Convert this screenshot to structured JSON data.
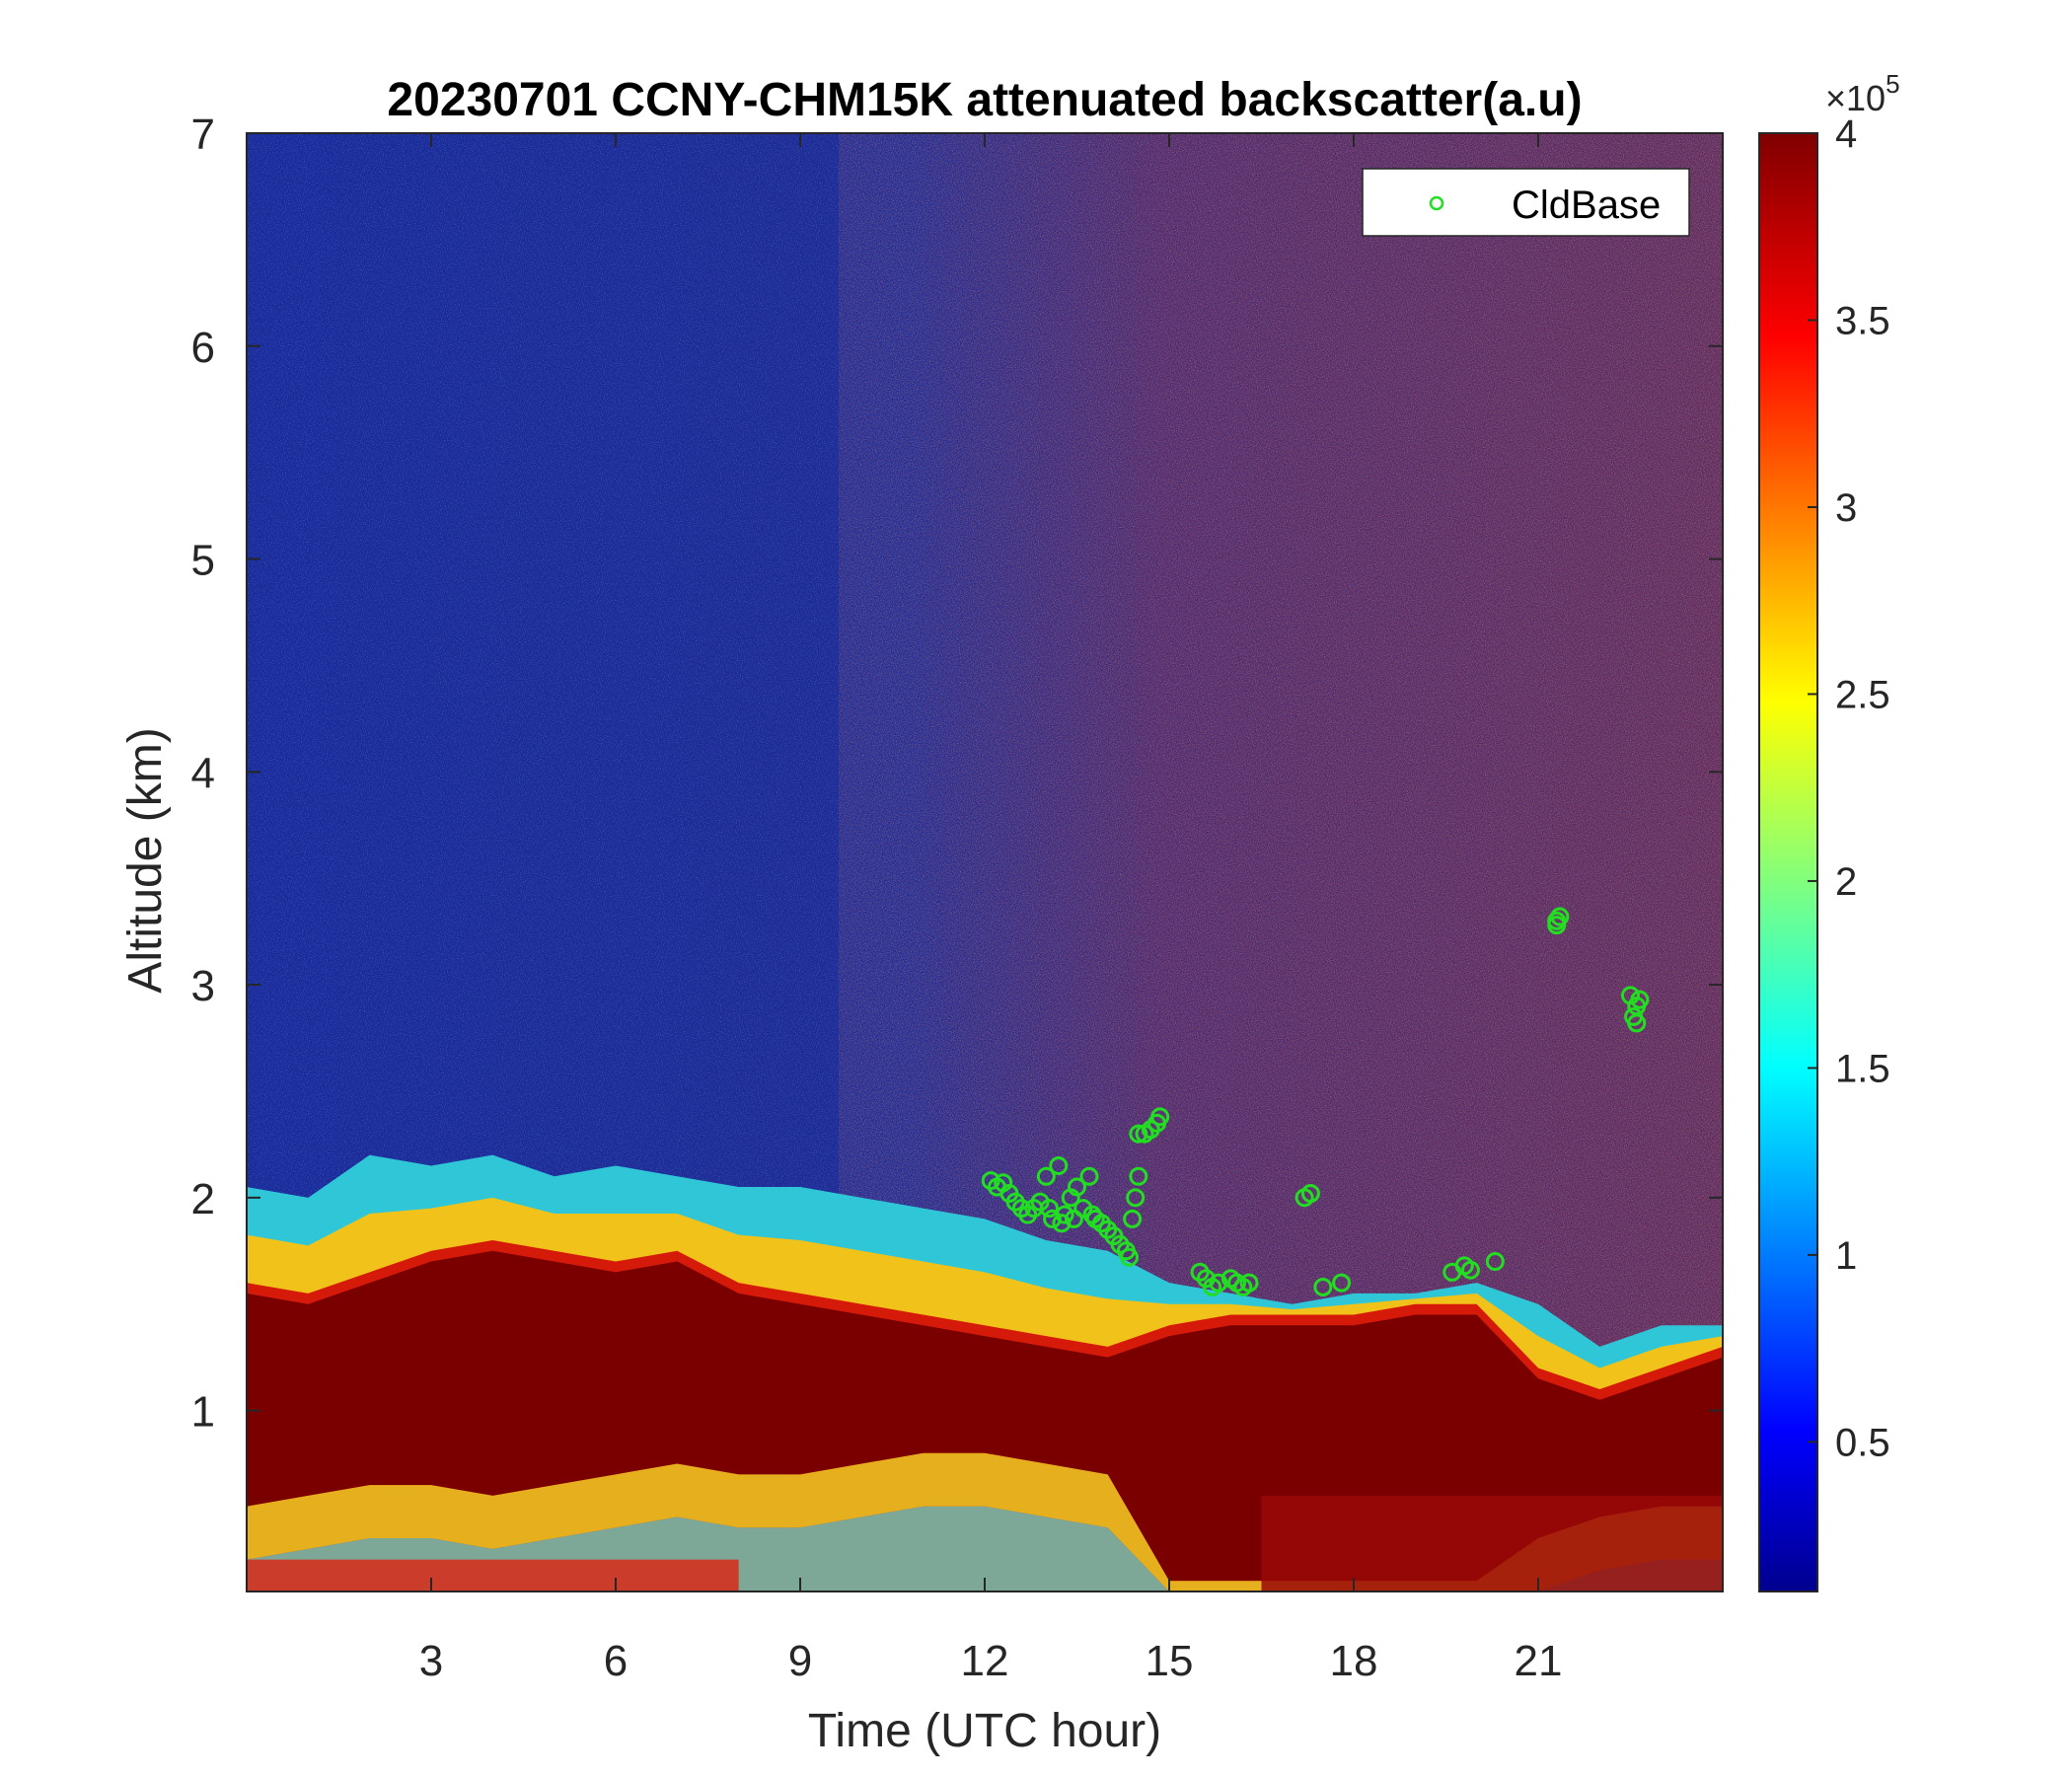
{
  "chart_data": {
    "type": "heatmap",
    "title": "20230701 CCNY-CHM15K attenuated backscatter(a.u)",
    "xlabel": "Time (UTC hour)",
    "ylabel": "Altitude (km)",
    "xlim": [
      0,
      24
    ],
    "ylim": [
      0.15,
      7
    ],
    "xticks": [
      3,
      6,
      9,
      12,
      15,
      18,
      21
    ],
    "yticks": [
      1,
      2,
      3,
      4,
      5,
      6,
      7
    ],
    "colormap": "jet",
    "colorbar": {
      "range": [
        0.1,
        4
      ],
      "ticks": [
        "0.5",
        "1",
        "1.5",
        "2",
        "2.5",
        "3",
        "3.5",
        "4"
      ],
      "tick_values": [
        0.5,
        1,
        1.5,
        2,
        2.5,
        3,
        3.5,
        4
      ],
      "multiplier": "×10",
      "exponent": "5"
    },
    "legend": {
      "placement": "top-right",
      "entries": [
        {
          "name": "CldBase",
          "marker": "circle",
          "color": "#22dd22"
        }
      ]
    },
    "layers": {
      "aerosol_top_km": [
        [
          0,
          2.05
        ],
        [
          1,
          2.0
        ],
        [
          2,
          2.2
        ],
        [
          3,
          2.15
        ],
        [
          4,
          2.2
        ],
        [
          5,
          2.1
        ],
        [
          6,
          2.15
        ],
        [
          7,
          2.1
        ],
        [
          8,
          2.05
        ],
        [
          9,
          2.05
        ],
        [
          10,
          2.0
        ],
        [
          11,
          1.95
        ],
        [
          12,
          1.9
        ],
        [
          13,
          1.8
        ],
        [
          14,
          1.75
        ],
        [
          15,
          1.6
        ],
        [
          16,
          1.55
        ],
        [
          17,
          1.5
        ],
        [
          18,
          1.55
        ],
        [
          19,
          1.55
        ],
        [
          20,
          1.6
        ],
        [
          21,
          1.5
        ],
        [
          22,
          1.3
        ],
        [
          23,
          1.4
        ],
        [
          24,
          1.4
        ]
      ],
      "thick_layer_top_km": [
        [
          0,
          1.6
        ],
        [
          1,
          1.55
        ],
        [
          2,
          1.65
        ],
        [
          3,
          1.75
        ],
        [
          4,
          1.8
        ],
        [
          5,
          1.75
        ],
        [
          6,
          1.7
        ],
        [
          7,
          1.75
        ],
        [
          8,
          1.6
        ],
        [
          9,
          1.55
        ],
        [
          10,
          1.5
        ],
        [
          11,
          1.45
        ],
        [
          12,
          1.4
        ],
        [
          13,
          1.35
        ],
        [
          14,
          1.3
        ],
        [
          15,
          1.4
        ],
        [
          16,
          1.45
        ],
        [
          17,
          1.45
        ],
        [
          18,
          1.45
        ],
        [
          19,
          1.5
        ],
        [
          20,
          1.5
        ],
        [
          21,
          1.2
        ],
        [
          22,
          1.1
        ],
        [
          23,
          1.2
        ],
        [
          24,
          1.3
        ]
      ],
      "thick_layer_bottom_km": [
        [
          0,
          0.55
        ],
        [
          1,
          0.6
        ],
        [
          2,
          0.65
        ],
        [
          3,
          0.65
        ],
        [
          4,
          0.6
        ],
        [
          5,
          0.65
        ],
        [
          6,
          0.7
        ],
        [
          7,
          0.75
        ],
        [
          8,
          0.7
        ],
        [
          9,
          0.7
        ],
        [
          10,
          0.75
        ],
        [
          11,
          0.8
        ],
        [
          12,
          0.8
        ],
        [
          13,
          0.75
        ],
        [
          14,
          0.7
        ],
        [
          15,
          0.2
        ],
        [
          16,
          0.2
        ],
        [
          17,
          0.2
        ],
        [
          18,
          0.2
        ],
        [
          19,
          0.2
        ],
        [
          20,
          0.2
        ],
        [
          21,
          0.4
        ],
        [
          22,
          0.5
        ],
        [
          23,
          0.55
        ],
        [
          24,
          0.55
        ]
      ]
    },
    "cloud_base_points": [
      [
        12.1,
        2.08
      ],
      [
        12.2,
        2.05
      ],
      [
        12.3,
        2.07
      ],
      [
        12.4,
        2.02
      ],
      [
        12.5,
        1.98
      ],
      [
        12.6,
        1.95
      ],
      [
        12.7,
        1.92
      ],
      [
        12.8,
        1.95
      ],
      [
        12.9,
        1.98
      ],
      [
        13.0,
        2.1
      ],
      [
        13.05,
        1.95
      ],
      [
        13.1,
        1.9
      ],
      [
        13.2,
        2.15
      ],
      [
        13.25,
        1.88
      ],
      [
        13.3,
        1.92
      ],
      [
        13.4,
        2.0
      ],
      [
        13.45,
        1.9
      ],
      [
        13.5,
        2.05
      ],
      [
        13.6,
        1.95
      ],
      [
        13.7,
        2.1
      ],
      [
        13.75,
        1.92
      ],
      [
        13.8,
        1.9
      ],
      [
        13.9,
        1.88
      ],
      [
        14.0,
        1.85
      ],
      [
        14.1,
        1.82
      ],
      [
        14.2,
        1.78
      ],
      [
        14.3,
        1.75
      ],
      [
        14.35,
        1.72
      ],
      [
        14.4,
        1.9
      ],
      [
        14.45,
        2.0
      ],
      [
        14.5,
        2.1
      ],
      [
        14.5,
        2.3
      ],
      [
        14.6,
        2.3
      ],
      [
        14.7,
        2.32
      ],
      [
        14.8,
        2.35
      ],
      [
        14.85,
        2.38
      ],
      [
        15.5,
        1.65
      ],
      [
        15.6,
        1.62
      ],
      [
        15.7,
        1.58
      ],
      [
        15.8,
        1.6
      ],
      [
        16.0,
        1.62
      ],
      [
        16.1,
        1.6
      ],
      [
        16.2,
        1.58
      ],
      [
        16.3,
        1.6
      ],
      [
        17.2,
        2.0
      ],
      [
        17.3,
        2.02
      ],
      [
        17.5,
        1.58
      ],
      [
        17.8,
        1.6
      ],
      [
        19.6,
        1.65
      ],
      [
        19.8,
        1.68
      ],
      [
        19.9,
        1.66
      ],
      [
        20.3,
        1.7
      ],
      [
        21.3,
        3.3
      ],
      [
        21.35,
        3.32
      ],
      [
        21.3,
        3.28
      ],
      [
        22.5,
        2.95
      ],
      [
        22.6,
        2.9
      ],
      [
        22.55,
        2.85
      ],
      [
        22.6,
        2.82
      ],
      [
        22.65,
        2.93
      ]
    ]
  }
}
